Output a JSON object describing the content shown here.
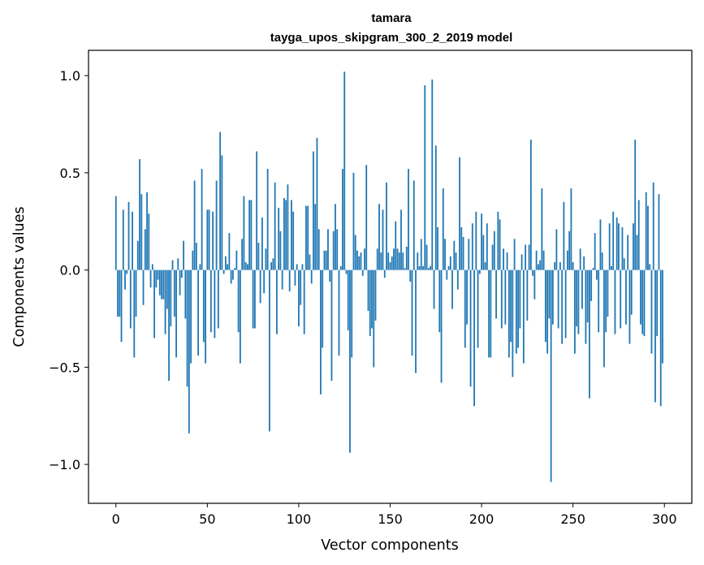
{
  "chart_data": {
    "type": "bar",
    "title": "tamara",
    "subtitle": "tayga_upos_skipgram_300_2_2019 model",
    "xlabel": "Vector components",
    "ylabel": "Components values",
    "xlim": [
      -15,
      315
    ],
    "ylim": [
      -1.2,
      1.13
    ],
    "xticks": [
      0,
      50,
      100,
      150,
      200,
      250,
      300
    ],
    "yticks": [
      1.0,
      0.5,
      0.0,
      -0.5,
      -1.0
    ],
    "xtick_labels": [
      "0",
      "50",
      "100",
      "150",
      "200",
      "250",
      "300"
    ],
    "ytick_labels": [
      "1.0",
      "0.5",
      "0.0",
      "−0.5",
      "−1.0"
    ],
    "grid": false,
    "bar_color": "#1f77b4",
    "values": [
      0.38,
      -0.24,
      -0.24,
      -0.37,
      0.31,
      -0.1,
      -0.02,
      0.35,
      -0.3,
      0.3,
      -0.45,
      -0.24,
      0.15,
      0.57,
      0.39,
      -0.18,
      0.21,
      0.4,
      0.29,
      -0.09,
      0.03,
      -0.35,
      -0.09,
      -0.05,
      -0.13,
      -0.15,
      -0.15,
      -0.33,
      -0.2,
      -0.57,
      -0.29,
      0.05,
      -0.24,
      -0.45,
      0.06,
      -0.13,
      -0.04,
      0.15,
      -0.25,
      -0.6,
      -0.84,
      -0.48,
      0.1,
      0.46,
      0.14,
      -0.44,
      0.03,
      0.52,
      -0.37,
      -0.48,
      0.31,
      0.31,
      -0.32,
      0.3,
      -0.35,
      0.46,
      -0.3,
      0.71,
      0.59,
      -0.02,
      0.07,
      0.03,
      0.19,
      -0.07,
      -0.05,
      0.01,
      0.1,
      -0.32,
      -0.48,
      0.16,
      0.38,
      0.04,
      0.03,
      0.36,
      0.36,
      -0.3,
      -0.3,
      0.61,
      0.14,
      -0.17,
      0.27,
      -0.12,
      0.11,
      0.52,
      -0.83,
      0.04,
      0.06,
      0.45,
      -0.33,
      0.32,
      0.2,
      -0.1,
      0.37,
      0.36,
      0.44,
      -0.11,
      0.36,
      0.3,
      -0.08,
      0.03,
      -0.29,
      -0.18,
      0.03,
      -0.33,
      0.33,
      0.33,
      0.08,
      -0.07,
      0.61,
      0.34,
      0.68,
      0.21,
      -0.64,
      -0.4,
      0.1,
      0.1,
      0.21,
      -0.06,
      -0.57,
      0.2,
      0.34,
      0.21,
      -0.44,
      0.02,
      0.52,
      1.02,
      -0.02,
      -0.31,
      -0.94,
      -0.45,
      0.5,
      0.18,
      0.1,
      0.07,
      0.09,
      -0.03,
      0.11,
      0.54,
      -0.21,
      -0.34,
      -0.3,
      -0.5,
      -0.26,
      0.11,
      0.34,
      0.09,
      0.31,
      -0.04,
      0.45,
      0.09,
      0.04,
      0.07,
      0.11,
      0.25,
      0.11,
      0.09,
      0.31,
      0.09,
      0.01,
      0.12,
      0.52,
      -0.06,
      -0.44,
      0.46,
      -0.53,
      0.09,
      0.02,
      0.16,
      0.02,
      0.95,
      0.13,
      0.01,
      0.02,
      0.98,
      -0.2,
      0.64,
      0.22,
      -0.32,
      -0.58,
      0.42,
      0.16,
      -0.05,
      0.02,
      0.07,
      -0.2,
      0.15,
      0.09,
      -0.1,
      0.58,
      0.22,
      0.17,
      -0.4,
      -0.28,
      0.16,
      -0.6,
      0.24,
      -0.7,
      0.3,
      -0.4,
      -0.02,
      0.29,
      0.18,
      0.04,
      0.24,
      -0.45,
      -0.45,
      0.13,
      0.2,
      -0.25,
      0.3,
      0.26,
      -0.3,
      0.11,
      -0.28,
      0.09,
      -0.45,
      -0.37,
      -0.55,
      0.16,
      -0.43,
      -0.4,
      -0.3,
      0.08,
      -0.48,
      0.13,
      -0.26,
      0.13,
      0.67,
      -0.03,
      -0.15,
      0.1,
      0.03,
      0.05,
      0.42,
      0.1,
      -0.37,
      -0.43,
      -0.25,
      -1.09,
      -0.28,
      0.04,
      0.21,
      -0.3,
      0.04,
      -0.38,
      0.35,
      -0.35,
      0.1,
      0.2,
      0.42,
      0.04,
      -0.43,
      -0.29,
      -0.33,
      0.11,
      -0.2,
      0.07,
      -0.38,
      -0.27,
      -0.66,
      -0.16,
      0.01,
      0.19,
      -0.05,
      -0.32,
      0.26,
      0.09,
      -0.5,
      -0.32,
      -0.24,
      0.24,
      0.02,
      0.3,
      -0.33,
      0.27,
      0.24,
      -0.3,
      0.22,
      0.06,
      -0.28,
      0.18,
      -0.38,
      -0.23,
      0.24,
      0.67,
      0.18,
      0.36,
      -0.28,
      -0.33,
      -0.34,
      0.4,
      0.33,
      0.03,
      -0.43,
      0.45,
      -0.68,
      -0.34,
      0.39,
      -0.7,
      -0.48
    ]
  }
}
